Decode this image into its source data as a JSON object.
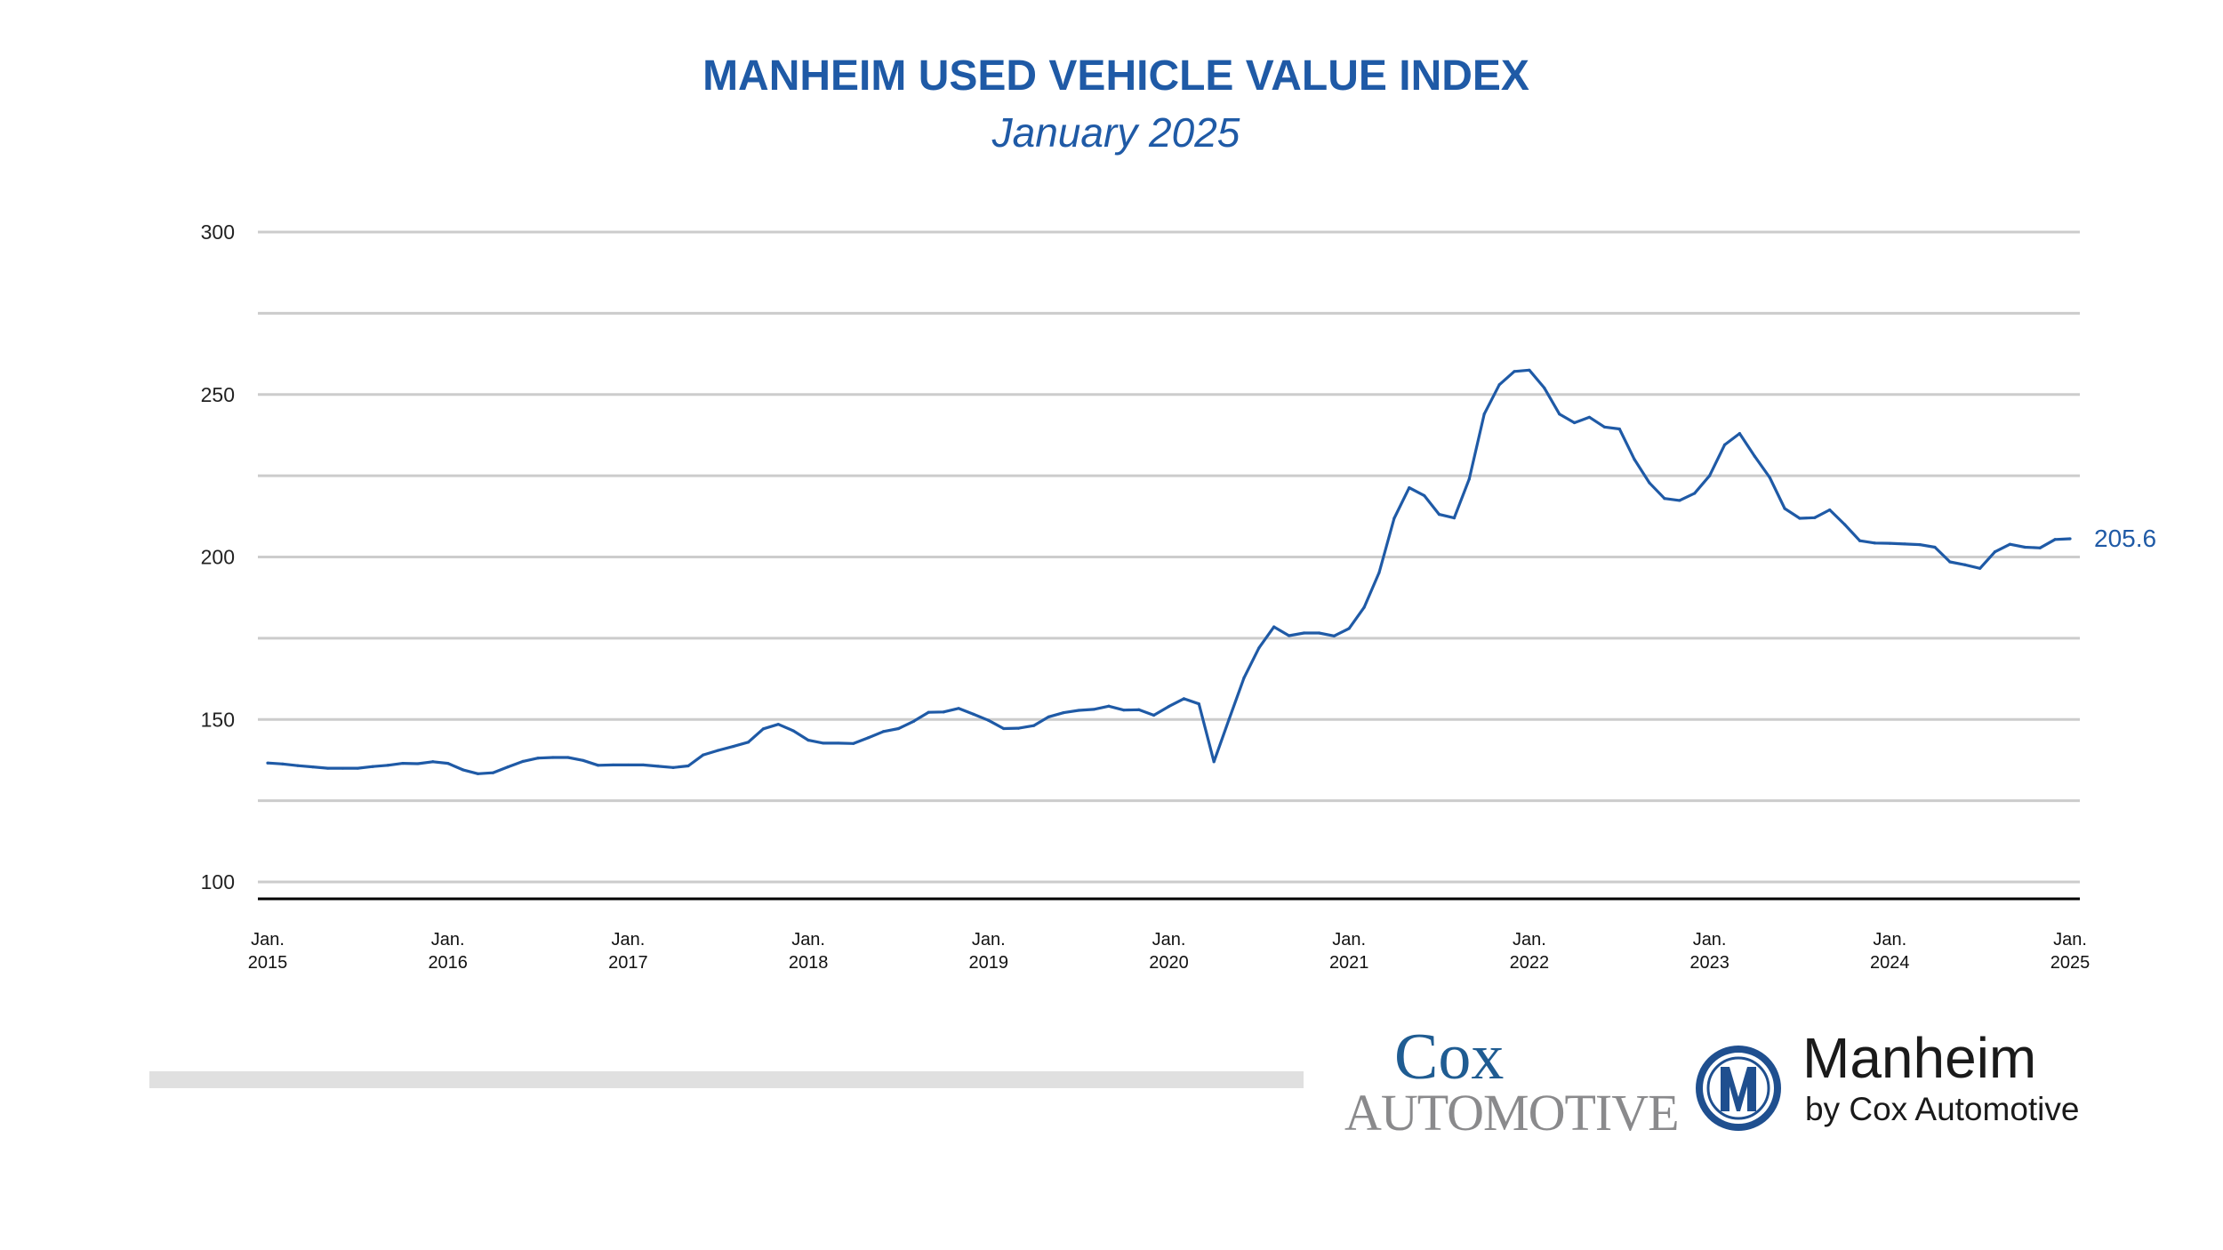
{
  "chart_data": {
    "type": "line",
    "title": "MANHEIM USED VEHICLE VALUE INDEX",
    "subtitle": "January 2025",
    "xlabel": "",
    "ylabel": "",
    "ylim": [
      100,
      300
    ],
    "yticks": [
      100,
      150,
      200,
      250,
      300
    ],
    "ytick_labels": [
      "100",
      "150",
      "200",
      "250",
      "300"
    ],
    "gridlines": [
      125,
      150,
      175,
      200,
      225,
      250,
      275,
      300
    ],
    "grid": true,
    "x_start": "2015-01",
    "x_end": "2025-01",
    "frequency": "monthly",
    "xtick_labels": [
      [
        "Jan.",
        "2015"
      ],
      [
        "Jan.",
        "2016"
      ],
      [
        "Jan.",
        "2017"
      ],
      [
        "Jan.",
        "2018"
      ],
      [
        "Jan.",
        "2019"
      ],
      [
        "Jan.",
        "2020"
      ],
      [
        "Jan.",
        "2021"
      ],
      [
        "Jan.",
        "2022"
      ],
      [
        "Jan.",
        "2023"
      ],
      [
        "Jan.",
        "2024"
      ],
      [
        "Jan.",
        "2025"
      ]
    ],
    "line_color": "#1f5aa6",
    "end_label": "205.6",
    "series": [
      {
        "values": [
          136.6,
          136.3,
          135.8,
          135.4,
          135.0,
          135.0,
          135.0,
          135.5,
          135.9,
          136.5,
          136.4,
          137.0,
          136.5,
          134.5,
          133.3,
          133.6,
          135.4,
          137.1,
          138.1,
          138.3,
          138.3,
          137.4,
          135.9,
          136.0,
          136.0,
          136.0,
          135.6,
          135.2,
          135.7,
          139.1,
          140.5,
          141.7,
          143.0,
          147.1,
          148.5,
          146.5,
          143.6,
          142.7,
          142.7,
          142.6,
          144.4,
          146.3,
          147.2,
          149.4,
          152.2,
          152.3,
          153.4,
          151.6,
          149.7,
          147.2,
          147.3,
          148.1,
          150.8,
          152.1,
          152.8,
          153.1,
          154.1,
          152.9,
          153.0,
          151.3,
          154.0,
          156.4,
          154.8,
          137.0,
          150.0,
          162.8,
          172.0,
          178.5,
          175.8,
          176.6,
          176.6,
          175.7,
          178.0,
          184.5,
          195.2,
          211.9,
          221.3,
          218.9,
          213.1,
          212.0,
          224.0,
          244.0,
          253.0,
          257.1,
          257.5,
          252.0,
          244.0,
          241.3,
          243.0,
          240.0,
          239.4,
          230.0,
          222.8,
          218.0,
          217.4,
          219.6,
          225.0,
          234.5,
          238.0,
          231.0,
          224.5,
          214.9,
          211.9,
          212.1,
          214.5,
          210.0,
          205.0,
          204.3,
          204.2,
          204.0,
          203.8,
          203.0,
          198.5,
          197.6,
          196.5,
          201.6,
          203.9,
          203.0,
          202.8,
          205.4,
          205.6
        ]
      }
    ]
  },
  "footer": {
    "cox_logo": {
      "line1": "Cox",
      "line2": "Automotive"
    },
    "manheim_logo": {
      "name": "Manheim",
      "tagline": "by Cox Automotive",
      "mark": "M"
    }
  }
}
